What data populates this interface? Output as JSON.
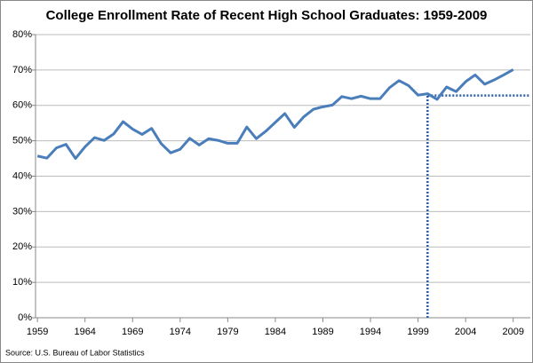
{
  "chart_data": {
    "type": "line",
    "title": "College Enrollment Rate of Recent High School Graduates: 1959-2009",
    "source": "Source: U.S. Bureau of Labor Statistics",
    "x": [
      1959,
      1960,
      1961,
      1962,
      1963,
      1964,
      1965,
      1966,
      1967,
      1968,
      1969,
      1970,
      1971,
      1972,
      1973,
      1974,
      1975,
      1976,
      1977,
      1978,
      1979,
      1980,
      1981,
      1982,
      1983,
      1984,
      1985,
      1986,
      1987,
      1988,
      1989,
      1990,
      1991,
      1992,
      1993,
      1994,
      1995,
      1996,
      1997,
      1998,
      1999,
      2000,
      2001,
      2002,
      2003,
      2004,
      2005,
      2006,
      2007,
      2008,
      2009
    ],
    "series": [
      {
        "color": "#4a7ebb",
        "values": [
          45.7,
          45.1,
          48.0,
          49.0,
          45.0,
          48.3,
          50.9,
          50.1,
          51.9,
          55.4,
          53.3,
          51.8,
          53.5,
          49.2,
          46.6,
          47.6,
          50.7,
          48.8,
          50.6,
          50.1,
          49.3,
          49.3,
          53.9,
          50.6,
          52.7,
          55.2,
          57.7,
          53.8,
          56.8,
          58.9,
          59.6,
          60.1,
          62.5,
          61.9,
          62.6,
          61.9,
          61.9,
          65.0,
          67.0,
          65.6,
          62.9,
          63.3,
          61.7,
          65.2,
          63.9,
          66.7,
          68.6,
          66.0,
          67.2,
          68.6,
          70.1
        ]
      }
    ],
    "reference": {
      "x": 2000,
      "y": 62.8,
      "color": "#2a5caa"
    },
    "xlim": [
      1958.8,
      2010.8
    ],
    "xticks": [
      1959,
      1964,
      1969,
      1974,
      1979,
      1984,
      1989,
      1994,
      1999,
      2004,
      2009
    ],
    "ylim": [
      0,
      80
    ],
    "yticks": [
      {
        "value": 0,
        "label": "0%"
      },
      {
        "value": 10,
        "label": "10%"
      },
      {
        "value": 20,
        "label": "20%"
      },
      {
        "value": 30,
        "label": "30%"
      },
      {
        "value": 40,
        "label": "40%"
      },
      {
        "value": 50,
        "label": "50%"
      },
      {
        "value": 60,
        "label": "60%"
      },
      {
        "value": 70,
        "label": "70%"
      },
      {
        "value": 80,
        "label": "80%"
      }
    ],
    "grid": true
  }
}
